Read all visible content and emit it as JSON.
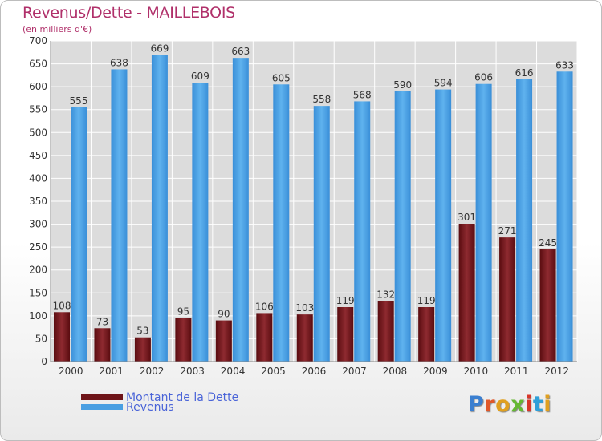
{
  "title": "Revenus/Dette - MAILLEBOIS",
  "subtitle": "(en milliers d'€)",
  "logo": {
    "text": "Proxiti",
    "colors": [
      "#3b7fd0",
      "#e0582a",
      "#e0a020",
      "#66b832",
      "#d8362a",
      "#2f9fd8",
      "#e0a020"
    ]
  },
  "chart_data": {
    "type": "bar",
    "categories": [
      "2000",
      "2001",
      "2002",
      "2003",
      "2004",
      "2005",
      "2006",
      "2007",
      "2008",
      "2009",
      "2010",
      "2011",
      "2012"
    ],
    "series": [
      {
        "name": "Montant de la Dette",
        "color": "#6e1418",
        "values": [
          108,
          73,
          53,
          95,
          90,
          106,
          103,
          119,
          132,
          119,
          301,
          271,
          245
        ]
      },
      {
        "name": "Revenus",
        "color": "#4a9fe2",
        "values": [
          555,
          638,
          669,
          609,
          663,
          605,
          558,
          568,
          590,
          594,
          606,
          616,
          633
        ]
      }
    ],
    "ylim": [
      0,
      700
    ],
    "yticks": [
      0,
      50,
      100,
      150,
      200,
      250,
      300,
      350,
      400,
      450,
      500,
      550,
      600,
      650,
      700
    ],
    "grid": true,
    "legend_position": "bottom-left"
  }
}
